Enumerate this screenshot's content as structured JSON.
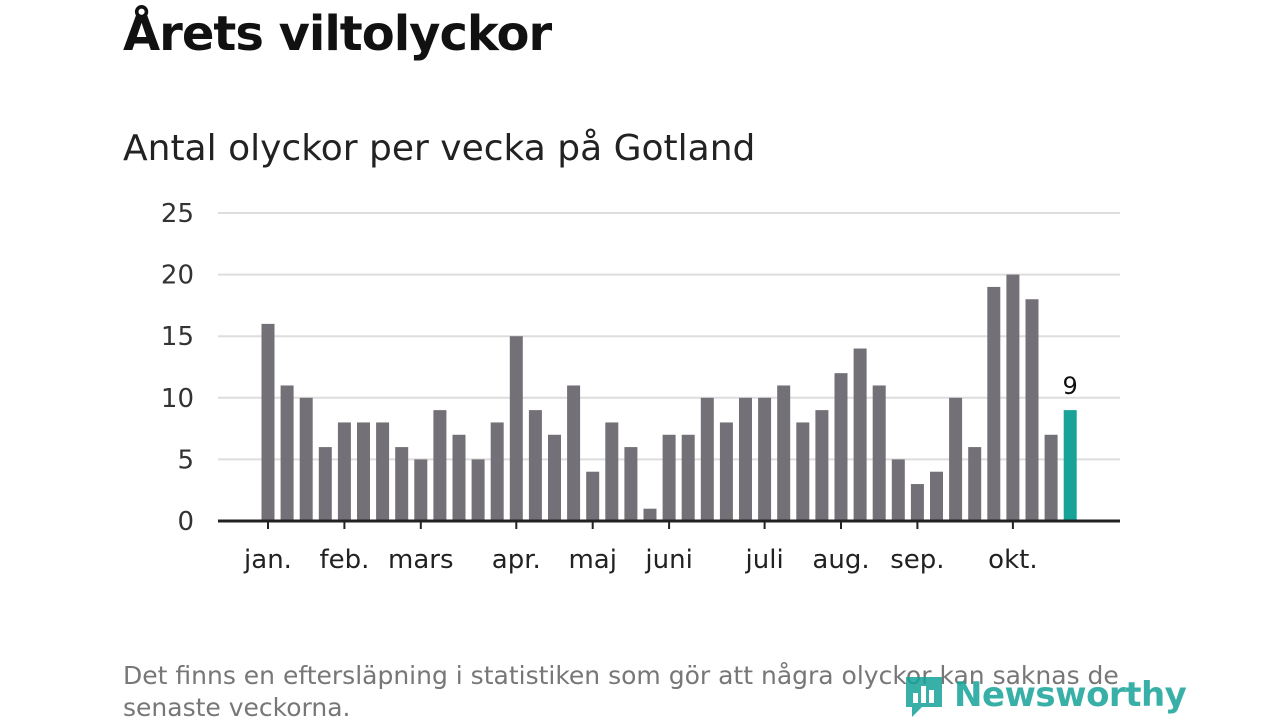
{
  "header": {
    "title": "Årets viltolyckor",
    "subtitle": "Antal olyckor per vecka på Gotland"
  },
  "footnote": "Det finns en eftersläpning i statistiken som gör att några olyckor kan saknas de senaste veckorna.",
  "brand": {
    "name": "Newsworthy"
  },
  "colors": {
    "bar": "#737077",
    "highlight": "#17a398",
    "grid": "#dddddd",
    "axis": "#222222"
  },
  "chart_data": {
    "type": "bar",
    "title": "Antal olyckor per vecka på Gotland",
    "xlabel": "",
    "ylabel": "",
    "ylim": [
      0,
      25
    ],
    "yticks": [
      0,
      5,
      10,
      15,
      20,
      25
    ],
    "grid": true,
    "weeks": [
      1,
      2,
      3,
      4,
      5,
      6,
      7,
      8,
      9,
      10,
      11,
      12,
      13,
      14,
      15,
      16,
      17,
      18,
      19,
      20,
      21,
      22,
      23,
      24,
      25,
      26,
      27,
      28,
      29,
      30,
      31,
      32,
      33,
      34,
      35,
      36,
      37,
      38,
      39,
      40,
      41,
      42,
      43
    ],
    "values": [
      16,
      11,
      10,
      6,
      8,
      8,
      8,
      6,
      5,
      9,
      7,
      5,
      8,
      15,
      9,
      7,
      11,
      4,
      8,
      6,
      1,
      7,
      7,
      10,
      8,
      10,
      10,
      11,
      8,
      9,
      12,
      14,
      11,
      5,
      3,
      4,
      10,
      6,
      19,
      20,
      18,
      7,
      9
    ],
    "highlight_index": 42,
    "highlight_label": "9",
    "month_ticks": [
      {
        "label": "jan.",
        "week": 1
      },
      {
        "label": "feb.",
        "week": 5
      },
      {
        "label": "mars",
        "week": 9
      },
      {
        "label": "apr.",
        "week": 14
      },
      {
        "label": "maj",
        "week": 18
      },
      {
        "label": "juni",
        "week": 22
      },
      {
        "label": "juli",
        "week": 27
      },
      {
        "label": "aug.",
        "week": 31
      },
      {
        "label": "sep.",
        "week": 35
      },
      {
        "label": "okt.",
        "week": 40
      }
    ]
  }
}
